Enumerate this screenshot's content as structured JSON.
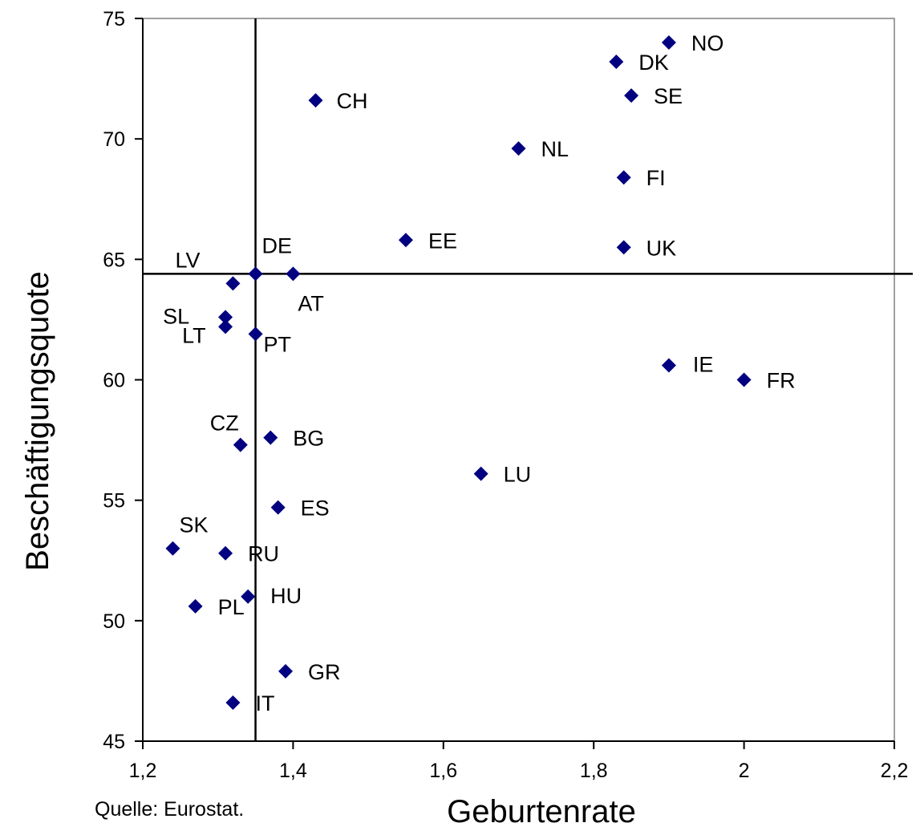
{
  "chart_data": {
    "type": "scatter",
    "title": "",
    "xlabel": "Geburtenrate",
    "ylabel": "Beschäftigungsquote",
    "xlim": [
      1.2,
      2.2
    ],
    "ylim": [
      45,
      75
    ],
    "x_ticks": [
      "1,2",
      "1,4",
      "1,6",
      "1,8",
      "2",
      "2,2"
    ],
    "y_ticks": [
      "45",
      "50",
      "55",
      "60",
      "65",
      "70",
      "75"
    ],
    "marker_color": "#000080",
    "reference_lines": {
      "x": 1.35,
      "y": 64.4
    },
    "grid": false,
    "legend": "none",
    "points": [
      {
        "label": "NO",
        "x": 1.9,
        "y": 74.0
      },
      {
        "label": "DK",
        "x": 1.83,
        "y": 73.2
      },
      {
        "label": "SE",
        "x": 1.85,
        "y": 71.8
      },
      {
        "label": "CH",
        "x": 1.43,
        "y": 71.6
      },
      {
        "label": "NL",
        "x": 1.7,
        "y": 69.6
      },
      {
        "label": "FI",
        "x": 1.84,
        "y": 68.4
      },
      {
        "label": "EE",
        "x": 1.55,
        "y": 65.8
      },
      {
        "label": "UK",
        "x": 1.84,
        "y": 65.5
      },
      {
        "label": "DE",
        "x": 1.35,
        "y": 64.4
      },
      {
        "label": "AT",
        "x": 1.4,
        "y": 64.4
      },
      {
        "label": "LV",
        "x": 1.32,
        "y": 64.0
      },
      {
        "label": "SL",
        "x": 1.31,
        "y": 62.6
      },
      {
        "label": "LT",
        "x": 1.31,
        "y": 62.2
      },
      {
        "label": "PT",
        "x": 1.35,
        "y": 61.9
      },
      {
        "label": "IE",
        "x": 1.9,
        "y": 60.6
      },
      {
        "label": "FR",
        "x": 2.0,
        "y": 60.0
      },
      {
        "label": "BG",
        "x": 1.37,
        "y": 57.6
      },
      {
        "label": "CZ",
        "x": 1.33,
        "y": 57.3
      },
      {
        "label": "LU",
        "x": 1.65,
        "y": 56.1
      },
      {
        "label": "ES",
        "x": 1.38,
        "y": 54.7
      },
      {
        "label": "SK",
        "x": 1.24,
        "y": 53.0
      },
      {
        "label": "RU",
        "x": 1.31,
        "y": 52.8
      },
      {
        "label": "HU",
        "x": 1.34,
        "y": 51.0
      },
      {
        "label": "PL",
        "x": 1.27,
        "y": 50.6
      },
      {
        "label": "GR",
        "x": 1.39,
        "y": 47.9
      },
      {
        "label": "IT",
        "x": 1.32,
        "y": 46.6
      }
    ]
  },
  "footer": {
    "source": "Quelle: Eurostat."
  }
}
